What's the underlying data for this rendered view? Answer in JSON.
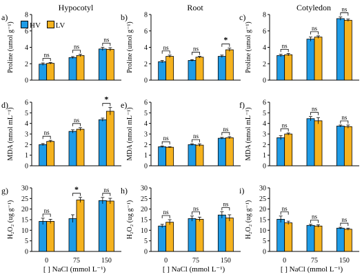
{
  "column_titles": [
    "Hypocotyl",
    "Root",
    "Cotyledon"
  ],
  "legend": [
    {
      "label": "HV",
      "color": "#1e9be6"
    },
    {
      "label": "LV",
      "color": "#f5b21e"
    }
  ],
  "xlabel": "[ ] NaCl (mmol L⁻¹)",
  "chart_data": [
    {
      "type": "bar",
      "panel_label": "a)",
      "ylabel": "Proline (umol g⁻¹)",
      "ylim": [
        0,
        8
      ],
      "yticks": [
        0,
        2,
        4,
        6,
        8
      ],
      "categories": [
        "0",
        "75",
        "150"
      ],
      "series": [
        {
          "name": "HV",
          "values": [
            1.95,
            2.75,
            3.8
          ],
          "errors": [
            0.15,
            0.12,
            0.2
          ]
        },
        {
          "name": "LV",
          "values": [
            2.05,
            3.0,
            3.75
          ],
          "errors": [
            0.1,
            0.15,
            0.2
          ]
        }
      ],
      "annotations": [
        "ns",
        "ns",
        "ns"
      ]
    },
    {
      "type": "bar",
      "panel_label": "b)",
      "ylabel": "Proline (umol g⁻¹)",
      "ylim": [
        0,
        8
      ],
      "yticks": [
        0,
        2,
        4,
        6,
        8
      ],
      "categories": [
        "0",
        "75",
        "150"
      ],
      "series": [
        {
          "name": "HV",
          "values": [
            2.25,
            2.4,
            2.9
          ],
          "errors": [
            0.15,
            0.1,
            0.15
          ]
        },
        {
          "name": "LV",
          "values": [
            2.9,
            2.8,
            3.7
          ],
          "errors": [
            0.15,
            0.1,
            0.2
          ]
        }
      ],
      "annotations": [
        "ns",
        "ns",
        "*"
      ]
    },
    {
      "type": "bar",
      "panel_label": "c)",
      "ylabel": "Proline (umol g⁻¹)",
      "ylim": [
        0,
        8
      ],
      "yticks": [
        0,
        2,
        4,
        6,
        8
      ],
      "categories": [
        "0",
        "75",
        "150"
      ],
      "series": [
        {
          "name": "HV",
          "values": [
            3.0,
            5.0,
            7.5
          ],
          "errors": [
            0.15,
            0.25,
            0.2
          ]
        },
        {
          "name": "LV",
          "values": [
            3.1,
            5.25,
            7.3
          ],
          "errors": [
            0.15,
            0.15,
            0.15
          ]
        }
      ],
      "annotations": [
        "ns",
        "ns",
        "ns"
      ]
    },
    {
      "type": "bar",
      "panel_label": "d)",
      "ylabel": "MDA (nmol mL⁻¹)",
      "ylim": [
        0,
        6
      ],
      "yticks": [
        0,
        1,
        2,
        3,
        4,
        5,
        6
      ],
      "categories": [
        "0",
        "75",
        "150"
      ],
      "series": [
        {
          "name": "HV",
          "values": [
            2.0,
            3.25,
            4.35
          ],
          "errors": [
            0.1,
            0.15,
            0.15
          ]
        },
        {
          "name": "LV",
          "values": [
            2.3,
            3.45,
            5.15
          ],
          "errors": [
            0.1,
            0.15,
            0.35
          ]
        }
      ],
      "annotations": [
        "ns",
        "ns",
        "*"
      ]
    },
    {
      "type": "bar",
      "panel_label": "e)",
      "ylabel": "MDA (nmol mL⁻¹)",
      "ylim": [
        0,
        6
      ],
      "yticks": [
        0,
        1,
        2,
        3,
        4,
        5,
        6
      ],
      "categories": [
        "0",
        "75",
        "150"
      ],
      "series": [
        {
          "name": "HV",
          "values": [
            1.8,
            2.0,
            2.6
          ],
          "errors": [
            0.08,
            0.08,
            0.08
          ]
        },
        {
          "name": "LV",
          "values": [
            1.75,
            1.95,
            2.65
          ],
          "errors": [
            0.05,
            0.12,
            0.1
          ]
        }
      ],
      "annotations": [
        "ns",
        "ns",
        "ns"
      ]
    },
    {
      "type": "bar",
      "panel_label": "f)",
      "ylabel": "MDA (nmol mL⁻¹)",
      "ylim": [
        0,
        6
      ],
      "yticks": [
        0,
        1,
        2,
        3,
        4,
        5,
        6
      ],
      "categories": [
        "0",
        "75",
        "150"
      ],
      "series": [
        {
          "name": "HV",
          "values": [
            2.65,
            4.45,
            3.75
          ],
          "errors": [
            0.2,
            0.2,
            0.1
          ]
        },
        {
          "name": "LV",
          "values": [
            3.0,
            4.25,
            3.7
          ],
          "errors": [
            0.1,
            0.3,
            0.15
          ]
        }
      ],
      "annotations": [
        "ns",
        "ns",
        "ns"
      ]
    },
    {
      "type": "bar",
      "panel_label": "g)",
      "ylabel": "H₂O₂ (ug g⁻¹)",
      "ylim": [
        0,
        30
      ],
      "yticks": [
        0,
        5,
        10,
        15,
        20,
        25,
        30
      ],
      "categories": [
        "0",
        "75",
        "150"
      ],
      "series": [
        {
          "name": "HV",
          "values": [
            14.2,
            15.5,
            24.0
          ],
          "errors": [
            1.5,
            1.8,
            1.5
          ]
        },
        {
          "name": "LV",
          "values": [
            14.2,
            24.3,
            23.8
          ],
          "errors": [
            1.0,
            1.2,
            1.3
          ]
        }
      ],
      "annotations": [
        "ns",
        "*",
        "ns"
      ]
    },
    {
      "type": "bar",
      "panel_label": "h)",
      "ylabel": "H₂O₂ (ug g⁻¹)",
      "ylim": [
        0,
        30
      ],
      "yticks": [
        0,
        5,
        10,
        15,
        20,
        25,
        30
      ],
      "categories": [
        "0",
        "75",
        "150"
      ],
      "series": [
        {
          "name": "HV",
          "values": [
            12.0,
            15.5,
            17.2
          ],
          "errors": [
            0.8,
            1.2,
            1.5
          ]
        },
        {
          "name": "LV",
          "values": [
            13.8,
            15.2,
            15.8
          ],
          "errors": [
            1.2,
            1.0,
            1.5
          ]
        }
      ],
      "annotations": [
        "ns",
        "ns",
        "ns"
      ]
    },
    {
      "type": "bar",
      "panel_label": "i)",
      "ylabel": "H₂O₂ (ug g⁻¹)",
      "ylim": [
        0,
        30
      ],
      "yticks": [
        0,
        5,
        10,
        15,
        20,
        25,
        30
      ],
      "categories": [
        "0",
        "75",
        "150"
      ],
      "series": [
        {
          "name": "HV",
          "values": [
            15.2,
            12.3,
            11.0
          ],
          "errors": [
            1.5,
            0.5,
            0.4
          ]
        },
        {
          "name": "LV",
          "values": [
            13.5,
            12.0,
            10.5
          ],
          "errors": [
            0.8,
            0.6,
            0.5
          ]
        }
      ],
      "annotations": [
        "ns",
        "ns",
        "ns"
      ]
    }
  ]
}
